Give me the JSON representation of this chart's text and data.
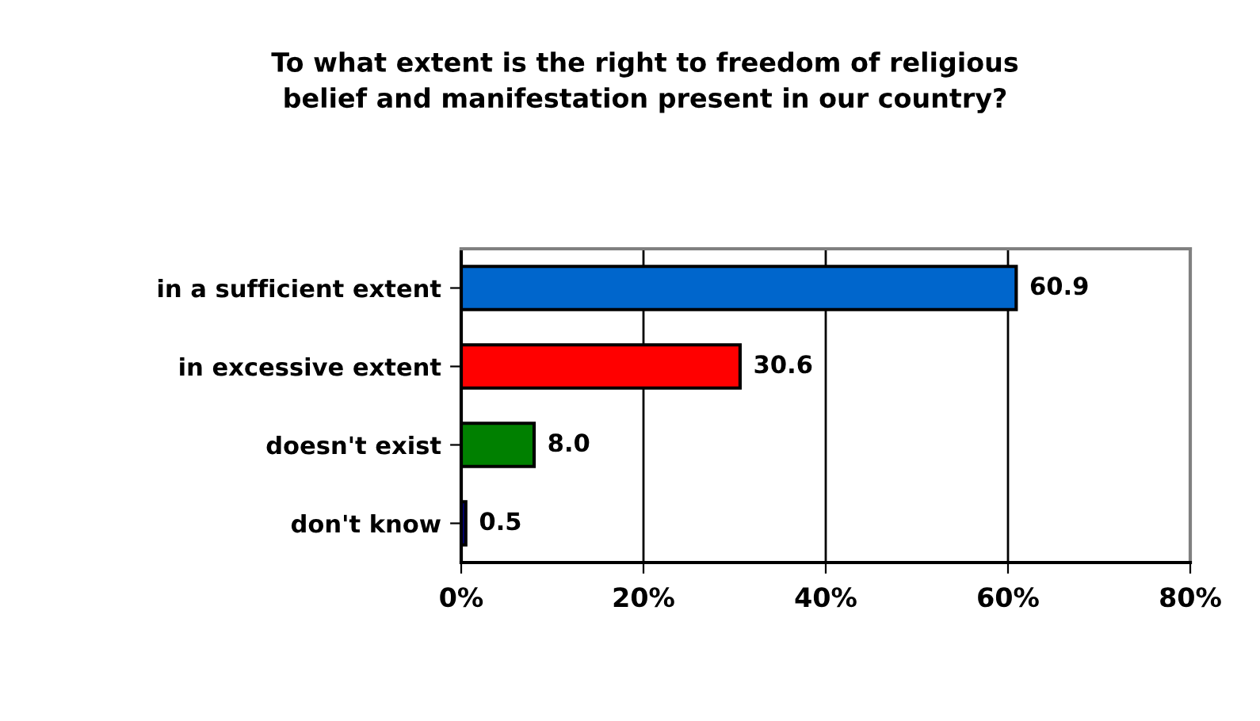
{
  "chart_data": {
    "type": "bar",
    "orientation": "horizontal",
    "title": "To what extent is the right to freedom of religious\nbelief and manifestation present in our country?",
    "categories": [
      "in a sufficient extent",
      "in excessive extent",
      "doesn't exist",
      "don't know"
    ],
    "values": [
      60.9,
      30.6,
      8.0,
      0.5
    ],
    "colors": [
      "#0066cc",
      "#ff0000",
      "#008000",
      "#000080"
    ],
    "xlim": [
      0,
      80
    ],
    "xticks": [
      {
        "value": 0,
        "label": "0%"
      },
      {
        "value": 20,
        "label": "20%"
      },
      {
        "value": 40,
        "label": "40%"
      },
      {
        "value": 60,
        "label": "60%"
      },
      {
        "value": 80,
        "label": "80%"
      }
    ],
    "grid": "x",
    "value_labels": [
      "60.9",
      "30.6",
      "8.0",
      "0.5"
    ]
  }
}
